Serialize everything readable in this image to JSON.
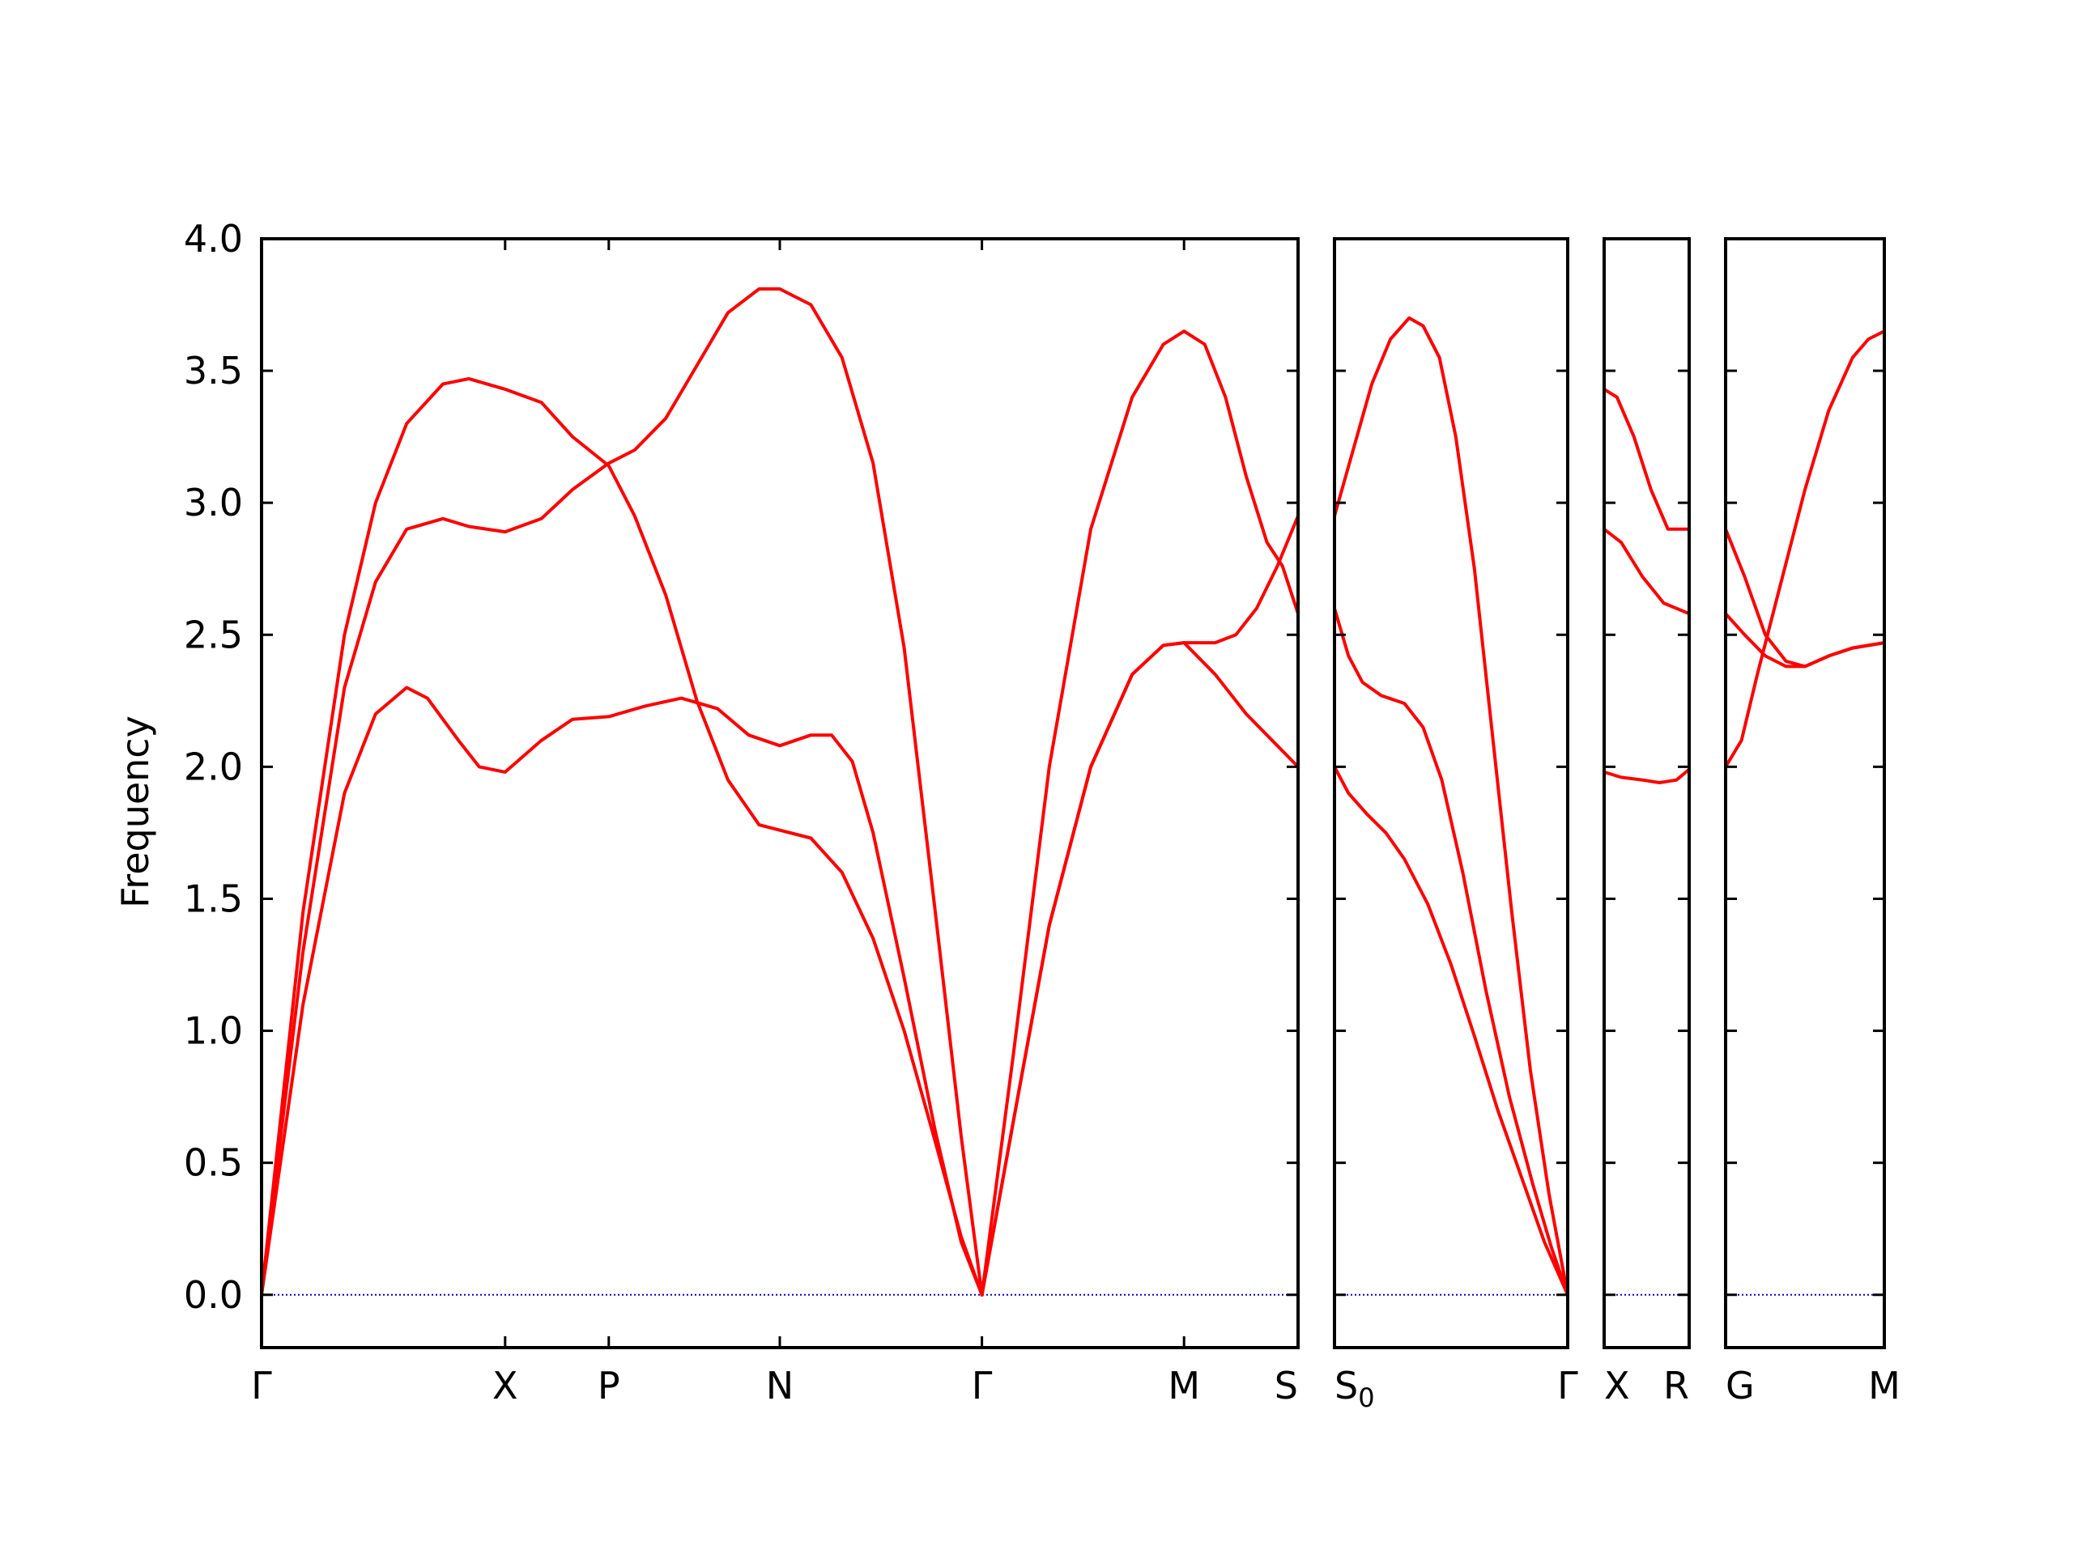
{
  "chart_data": {
    "type": "line",
    "ylabel": "Frequency",
    "ylim": [
      -0.2,
      4.0
    ],
    "yticks": [
      "0.0",
      "0.5",
      "1.0",
      "1.5",
      "2.0",
      "2.5",
      "3.0",
      "3.5",
      "4.0"
    ],
    "grid": false,
    "line_color": "#ff0000",
    "zero_line_color": "#0000cc",
    "panels": [
      {
        "xlim": [
          0,
          10.0
        ],
        "labels": [
          {
            "x": 0,
            "text": "Γ"
          },
          {
            "x": 2.35,
            "text": "X"
          },
          {
            "x": 3.35,
            "text": "P"
          },
          {
            "x": 5.0,
            "text": "N"
          },
          {
            "x": 6.95,
            "text": "Γ"
          },
          {
            "x": 8.9,
            "text": "M"
          },
          {
            "x": 10.0,
            "text": "S"
          }
        ],
        "series": [
          {
            "points": [
              [
                0,
                0
              ],
              [
                0.4,
                1.45
              ],
              [
                0.8,
                2.5
              ],
              [
                1.1,
                3.0
              ],
              [
                1.4,
                3.3
              ],
              [
                1.75,
                3.45
              ],
              [
                2.0,
                3.47
              ],
              [
                2.35,
                3.43
              ],
              [
                2.7,
                3.38
              ],
              [
                3.0,
                3.25
              ],
              [
                3.35,
                3.14
              ],
              [
                3.6,
                2.95
              ],
              [
                3.9,
                2.65
              ],
              [
                4.2,
                2.25
              ],
              [
                4.5,
                1.95
              ],
              [
                4.8,
                1.78
              ],
              [
                5.0,
                1.76
              ],
              [
                5.3,
                1.73
              ],
              [
                5.6,
                1.6
              ],
              [
                5.9,
                1.35
              ],
              [
                6.2,
                1.0
              ],
              [
                6.5,
                0.58
              ],
              [
                6.75,
                0.22
              ],
              [
                6.95,
                0
              ]
            ]
          },
          {
            "points": [
              [
                0,
                0
              ],
              [
                0.4,
                1.3
              ],
              [
                0.8,
                2.3
              ],
              [
                1.1,
                2.7
              ],
              [
                1.4,
                2.9
              ],
              [
                1.75,
                2.94
              ],
              [
                2.0,
                2.91
              ],
              [
                2.35,
                2.89
              ],
              [
                2.7,
                2.94
              ],
              [
                3.0,
                3.05
              ],
              [
                3.35,
                3.15
              ],
              [
                3.6,
                3.2
              ],
              [
                3.9,
                3.32
              ],
              [
                4.2,
                3.52
              ],
              [
                4.5,
                3.72
              ],
              [
                4.8,
                3.81
              ],
              [
                5.0,
                3.81
              ],
              [
                5.3,
                3.75
              ],
              [
                5.6,
                3.55
              ],
              [
                5.9,
                3.15
              ],
              [
                6.2,
                2.45
              ],
              [
                6.5,
                1.45
              ],
              [
                6.75,
                0.6
              ],
              [
                6.95,
                0
              ]
            ]
          },
          {
            "points": [
              [
                0,
                0
              ],
              [
                0.4,
                1.1
              ],
              [
                0.8,
                1.9
              ],
              [
                1.1,
                2.2
              ],
              [
                1.4,
                2.3
              ],
              [
                1.6,
                2.26
              ],
              [
                1.9,
                2.1
              ],
              [
                2.1,
                2.0
              ],
              [
                2.35,
                1.98
              ],
              [
                2.7,
                2.1
              ],
              [
                3.0,
                2.18
              ],
              [
                3.35,
                2.19
              ],
              [
                3.7,
                2.23
              ],
              [
                4.05,
                2.26
              ],
              [
                4.4,
                2.22
              ],
              [
                4.7,
                2.12
              ],
              [
                5.0,
                2.08
              ],
              [
                5.3,
                2.12
              ],
              [
                5.5,
                2.12
              ],
              [
                5.7,
                2.02
              ],
              [
                5.9,
                1.75
              ],
              [
                6.2,
                1.2
              ],
              [
                6.5,
                0.62
              ],
              [
                6.75,
                0.2
              ],
              [
                6.95,
                0
              ]
            ]
          },
          {
            "points": [
              [
                6.95,
                0
              ],
              [
                7.25,
                0.65
              ],
              [
                7.6,
                1.4
              ],
              [
                8.0,
                2.0
              ],
              [
                8.4,
                2.35
              ],
              [
                8.7,
                2.46
              ],
              [
                8.9,
                2.47
              ],
              [
                9.2,
                2.47
              ],
              [
                9.4,
                2.5
              ],
              [
                9.6,
                2.6
              ],
              [
                9.8,
                2.76
              ],
              [
                10.0,
                2.95
              ]
            ]
          },
          {
            "points": [
              [
                6.95,
                0
              ],
              [
                7.25,
                0.9
              ],
              [
                7.6,
                2.0
              ],
              [
                8.0,
                2.9
              ],
              [
                8.4,
                3.4
              ],
              [
                8.7,
                3.6
              ],
              [
                8.9,
                3.65
              ],
              [
                9.1,
                3.6
              ],
              [
                9.3,
                3.4
              ],
              [
                9.5,
                3.1
              ],
              [
                9.7,
                2.85
              ],
              [
                9.85,
                2.76
              ],
              [
                10.0,
                2.58
              ]
            ]
          },
          {
            "points": [
              [
                6.95,
                0
              ],
              [
                7.25,
                0.65
              ],
              [
                7.6,
                1.4
              ],
              [
                8.0,
                2.0
              ],
              [
                8.4,
                2.35
              ],
              [
                8.7,
                2.46
              ],
              [
                8.9,
                2.47
              ],
              [
                9.2,
                2.35
              ],
              [
                9.5,
                2.2
              ],
              [
                9.8,
                2.08
              ],
              [
                10.0,
                2.0
              ]
            ]
          }
        ]
      },
      {
        "xlim": [
          0,
          1.0
        ],
        "labels": [
          {
            "x": 0,
            "text": "S",
            "sub": "0"
          },
          {
            "x": 1.0,
            "text": "Γ"
          }
        ],
        "series": [
          {
            "points": [
              [
                0,
                2.95
              ],
              [
                0.08,
                3.2
              ],
              [
                0.16,
                3.45
              ],
              [
                0.24,
                3.62
              ],
              [
                0.32,
                3.7
              ],
              [
                0.38,
                3.67
              ],
              [
                0.45,
                3.55
              ],
              [
                0.52,
                3.25
              ],
              [
                0.6,
                2.75
              ],
              [
                0.68,
                2.1
              ],
              [
                0.76,
                1.45
              ],
              [
                0.84,
                0.85
              ],
              [
                0.92,
                0.38
              ],
              [
                1.0,
                0
              ]
            ]
          },
          {
            "points": [
              [
                0,
                2.6
              ],
              [
                0.06,
                2.42
              ],
              [
                0.12,
                2.32
              ],
              [
                0.2,
                2.27
              ],
              [
                0.3,
                2.24
              ],
              [
                0.38,
                2.15
              ],
              [
                0.46,
                1.95
              ],
              [
                0.55,
                1.6
              ],
              [
                0.65,
                1.15
              ],
              [
                0.75,
                0.75
              ],
              [
                0.85,
                0.42
              ],
              [
                0.93,
                0.18
              ],
              [
                1.0,
                0
              ]
            ]
          },
          {
            "points": [
              [
                0,
                2.0
              ],
              [
                0.06,
                1.9
              ],
              [
                0.14,
                1.82
              ],
              [
                0.22,
                1.75
              ],
              [
                0.3,
                1.65
              ],
              [
                0.4,
                1.48
              ],
              [
                0.5,
                1.25
              ],
              [
                0.6,
                0.98
              ],
              [
                0.7,
                0.7
              ],
              [
                0.8,
                0.45
              ],
              [
                0.9,
                0.2
              ],
              [
                1.0,
                0
              ]
            ]
          }
        ]
      },
      {
        "xlim": [
          0,
          1.0
        ],
        "labels": [
          {
            "x": 0,
            "text": "X"
          },
          {
            "x": 1.0,
            "text": "R"
          }
        ],
        "series": [
          {
            "points": [
              [
                0,
                3.43
              ],
              [
                0.15,
                3.4
              ],
              [
                0.35,
                3.25
              ],
              [
                0.55,
                3.05
              ],
              [
                0.75,
                2.9
              ],
              [
                1.0,
                2.9
              ]
            ]
          },
          {
            "points": [
              [
                0,
                2.9
              ],
              [
                0.2,
                2.85
              ],
              [
                0.45,
                2.72
              ],
              [
                0.7,
                2.62
              ],
              [
                1.0,
                2.58
              ]
            ]
          },
          {
            "points": [
              [
                0,
                1.98
              ],
              [
                0.2,
                1.96
              ],
              [
                0.45,
                1.95
              ],
              [
                0.65,
                1.94
              ],
              [
                0.85,
                1.95
              ],
              [
                1.0,
                1.99
              ]
            ]
          }
        ]
      },
      {
        "xlim": [
          0,
          1.0
        ],
        "labels": [
          {
            "x": 0,
            "text": "G"
          },
          {
            "x": 1.0,
            "text": "M"
          }
        ],
        "series": [
          {
            "points": [
              [
                0,
                2.9
              ],
              [
                0.12,
                2.72
              ],
              [
                0.25,
                2.5
              ],
              [
                0.38,
                2.4
              ],
              [
                0.5,
                2.38
              ],
              [
                0.65,
                2.42
              ],
              [
                0.8,
                2.45
              ],
              [
                1.0,
                2.47
              ]
            ]
          },
          {
            "points": [
              [
                0,
                2.58
              ],
              [
                0.12,
                2.5
              ],
              [
                0.25,
                2.42
              ],
              [
                0.38,
                2.38
              ],
              [
                0.5,
                2.38
              ],
              [
                0.65,
                2.42
              ],
              [
                0.8,
                2.45
              ],
              [
                1.0,
                2.47
              ]
            ]
          },
          {
            "points": [
              [
                0,
                2.0
              ],
              [
                0.1,
                2.1
              ],
              [
                0.2,
                2.35
              ],
              [
                0.35,
                2.7
              ],
              [
                0.5,
                3.05
              ],
              [
                0.65,
                3.35
              ],
              [
                0.8,
                3.55
              ],
              [
                0.9,
                3.62
              ],
              [
                1.0,
                3.65
              ]
            ]
          }
        ]
      }
    ]
  }
}
